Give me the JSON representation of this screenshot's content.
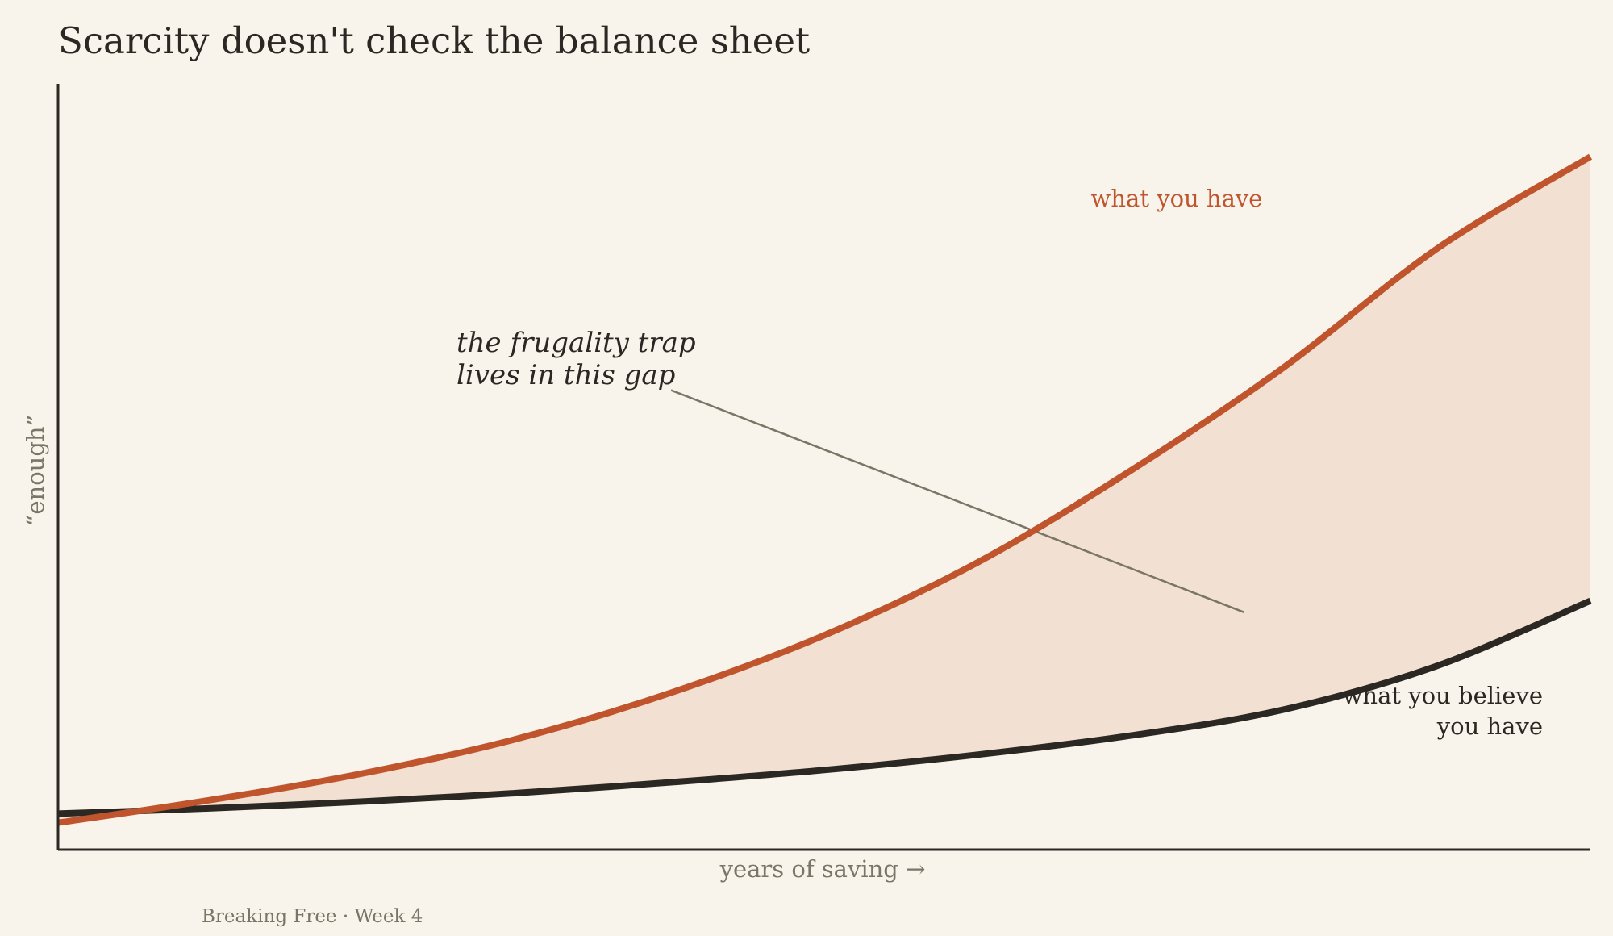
{
  "chart_data": {
    "type": "area",
    "title": "Scarcity doesn't check the balance sheet",
    "xlabel": "years of saving  →",
    "ylabel": "“enough”",
    "x_range": [
      0,
      1
    ],
    "y_range": [
      0,
      1
    ],
    "axis_ticks": false,
    "grid": false,
    "legend": "direct labels on the lines",
    "series": [
      {
        "name": "what you have",
        "color": "#c0552d",
        "x": [
          0,
          0.1,
          0.2,
          0.3,
          0.4,
          0.5,
          0.6,
          0.7,
          0.8,
          0.9,
          1.0
        ],
        "y": [
          0.035,
          0.065,
          0.1,
          0.145,
          0.205,
          0.28,
          0.375,
          0.495,
          0.63,
          0.785,
          0.905
        ]
      },
      {
        "name": "what you believe\nyou have",
        "color": "#2b2823",
        "x": [
          0,
          0.1,
          0.2,
          0.3,
          0.4,
          0.5,
          0.6,
          0.7,
          0.8,
          0.9,
          1.0
        ],
        "y": [
          0.047,
          0.054,
          0.063,
          0.074,
          0.088,
          0.104,
          0.124,
          0.149,
          0.183,
          0.24,
          0.325
        ]
      }
    ],
    "fill_between": {
      "color": "#f2e1d3"
    },
    "annotations": [
      {
        "text": "the frugality trap\nlives in this gap",
        "text_at": [
          0.26,
          0.65
        ],
        "arrow_from": [
          0.4,
          0.6
        ],
        "arrow_to": [
          0.774,
          0.31
        ]
      }
    ]
  },
  "footer": "Breaking Free · Week 4"
}
